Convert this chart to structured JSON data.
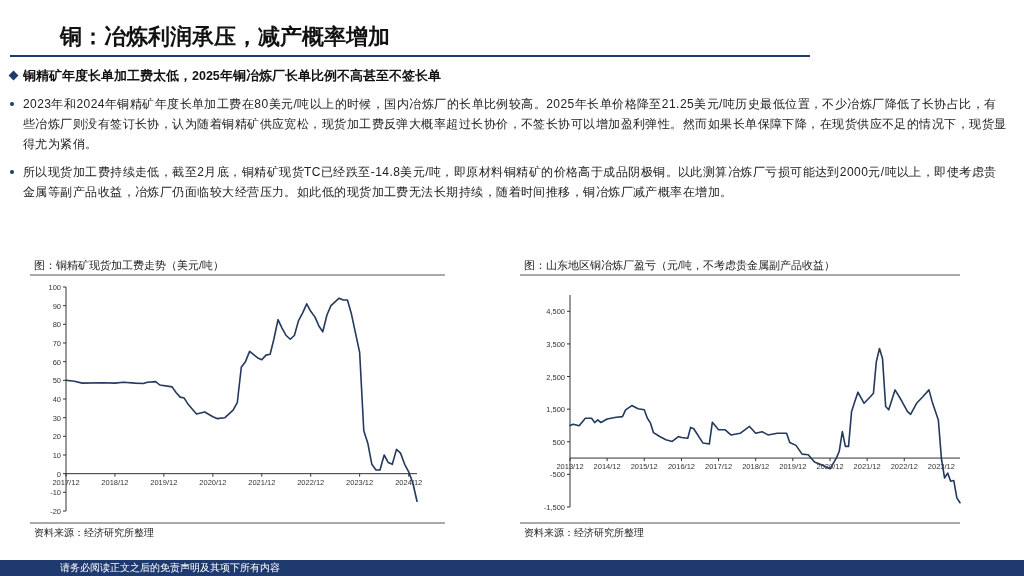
{
  "chart_data": [
    {
      "type": "other",
      "title": "铜：冶炼利润承压，减产概率增加",
      "subtitle": "铜精矿年度长单加工费太低，2025年铜冶炼厂长单比例不高甚至不签长单",
      "annotations": [
        "2023年和2024年铜精矿年度长单加工费在80美元/吨以上的时候，国内冶炼厂的长单比例较高。2025年长单价格降至21.25美元/吨历史最低位置，不少冶炼厂降低了长协占比，有些冶炼厂则没有签订长协，认为随着铜精矿供应宽松，现货加工费反弹大概率超过长协价，不签长协可以增加盈利弹性。然而如果长单保障下降，在现货供应不足的情况下，现货显得尤为紧俏。",
        "所以现货加工费持续走低，截至2月底，铜精矿现货TC已经跌至-14.8美元/吨，即原材料铜精矿的价格高于成品阴极铜。以此测算冶炼厂亏损可能达到2000元/吨以上，即使考虑贵金属等副产品收益，冶炼厂仍面临较大经营压力。如此低的现货加工费无法长期持续，随着时间推移，铜冶炼厂减产概率在增加。",
        "请务必阅读正文之后的免责声明及其项下所有内容"
      ]
    },
    {
      "type": "line",
      "title": "图：铜精矿现货加工费走势（美元/吨）",
      "annotations": [
        "资料来源：经济研究所整理"
      ],
      "x": [
        "2017-12",
        "2018-02",
        "2018-04",
        "2018-09",
        "2018-12",
        "2019-02",
        "2019-05",
        "2019-07",
        "2019-08",
        "2019-10",
        "2019-11",
        "2020-02",
        "2020-03",
        "2020-04",
        "2020-05",
        "2020-06",
        "2020-07",
        "2020-08",
        "2020-10",
        "2020-12",
        "2021-01",
        "2021-03",
        "2021-05",
        "2021-06",
        "2021-07",
        "2021-08",
        "2021-09",
        "2021-11",
        "2021-12",
        "2022-01",
        "2022-02",
        "2022-03",
        "2022-04",
        "2022-05",
        "2022-06",
        "2022-07",
        "2022-08",
        "2022-09",
        "2022-10",
        "2022-11",
        "2022-12",
        "2023-01",
        "2023-02",
        "2023-03",
        "2023-04",
        "2023-05",
        "2023-07",
        "2023-08",
        "2023-09",
        "2023-10",
        "2023-11",
        "2023-12",
        "2024-01",
        "2024-02",
        "2024-03",
        "2024-04",
        "2024-05",
        "2024-06",
        "2024-07",
        "2024-08",
        "2024-09",
        "2024-10",
        "2024-11",
        "2024-12",
        "2025-01",
        "2025-02"
      ],
      "series": [
        {
          "color": "#23395d",
          "values": [
            50,
            49.5,
            48.5,
            48.7,
            48.5,
            49,
            48.5,
            48.3,
            49,
            49.3,
            47.5,
            46.5,
            43.5,
            41,
            40.5,
            37,
            34.5,
            32,
            33,
            30.5,
            29.5,
            30,
            34,
            38,
            57,
            60,
            65.5,
            62,
            61,
            63.5,
            64,
            72,
            82.5,
            78,
            74,
            72,
            74,
            82,
            86,
            91,
            87,
            84,
            79,
            76,
            85,
            90,
            94,
            93,
            93,
            85.5,
            75,
            65,
            23,
            16,
            5,
            2,
            2,
            10,
            6,
            5,
            13,
            11,
            5,
            1,
            -5,
            -14.8
          ]
        }
      ],
      "xlim": [
        "2017-12",
        "2025-02"
      ],
      "xticks": [
        {
          "value": "2017-12",
          "label": "2017/12"
        },
        {
          "value": "2018-12",
          "label": "2018/12"
        },
        {
          "value": "2019-12",
          "label": "2019/12"
        },
        {
          "value": "2020-12",
          "label": "2020/12"
        },
        {
          "value": "2021-12",
          "label": "2021/12"
        },
        {
          "value": "2022-12",
          "label": "2022/12"
        },
        {
          "value": "2023-12",
          "label": "2023/12"
        },
        {
          "value": "2024-12",
          "label": "2024/12"
        }
      ],
      "ylim": [
        -20,
        100
      ],
      "yticks": [
        -20,
        -10,
        0,
        10,
        20,
        30,
        40,
        50,
        60,
        70,
        80,
        90,
        100
      ]
    },
    {
      "type": "line",
      "title": "图：山东地区铜冶炼厂盈亏（元/吨，不考虑贵金属副产品收益）",
      "annotations": [
        "资料来源：经济研究所整理"
      ],
      "x": [
        "2013-12",
        "2014-01",
        "2014-03",
        "2014-05",
        "2014-07",
        "2014-08",
        "2014-09",
        "2014-10",
        "2014-12",
        "2015-03",
        "2015-05",
        "2015-06",
        "2015-08",
        "2015-10",
        "2015-12",
        "2016-01",
        "2016-02",
        "2016-03",
        "2016-05",
        "2016-07",
        "2016-09",
        "2016-11",
        "2016-12",
        "2017-02",
        "2017-03",
        "2017-04",
        "2017-07",
        "2017-09",
        "2017-10",
        "2017-12",
        "2018-02",
        "2018-04",
        "2018-07",
        "2018-10",
        "2018-12",
        "2019-02",
        "2019-04",
        "2019-07",
        "2019-10",
        "2019-11",
        "2020-01",
        "2020-03",
        "2020-05",
        "2020-07",
        "2020-09",
        "2020-12",
        "2021-02",
        "2021-03",
        "2021-04",
        "2021-05",
        "2021-06",
        "2021-07",
        "2021-08",
        "2021-09",
        "2021-11",
        "2022-01",
        "2022-02",
        "2022-03",
        "2022-04",
        "2022-05",
        "2022-06",
        "2022-07",
        "2022-09",
        "2022-11",
        "2023-01",
        "2023-02",
        "2023-04",
        "2023-06",
        "2023-08",
        "2023-09",
        "2023-11",
        "2023-12",
        "2024-01",
        "2024-02",
        "2024-03",
        "2024-04",
        "2024-05",
        "2024-06"
      ],
      "series": [
        {
          "color": "#23395d",
          "values": [
            1000,
            1040,
            990,
            1220,
            1220,
            1090,
            1170,
            1090,
            1200,
            1250,
            1270,
            1480,
            1610,
            1510,
            1480,
            1220,
            1070,
            780,
            660,
            560,
            510,
            660,
            630,
            610,
            940,
            900,
            460,
            430,
            1100,
            870,
            870,
            710,
            760,
            970,
            760,
            810,
            710,
            760,
            760,
            480,
            390,
            120,
            100,
            -120,
            -200,
            -330,
            0,
            200,
            810,
            360,
            360,
            1430,
            1730,
            2020,
            1680,
            1880,
            1990,
            2950,
            3360,
            3050,
            1580,
            1480,
            2090,
            1780,
            1430,
            1340,
            1680,
            1880,
            2090,
            1730,
            1170,
            0,
            -610,
            -460,
            -710,
            -690,
            -1220,
            -1370
          ]
        }
      ],
      "xlim": [
        "2013-12",
        "2024-06"
      ],
      "xticks": [
        {
          "value": "2013-12",
          "label": "2013/12"
        },
        {
          "value": "2014-12",
          "label": "2014/12"
        },
        {
          "value": "2015-12",
          "label": "2015/12"
        },
        {
          "value": "2016-12",
          "label": "2016/12"
        },
        {
          "value": "2017-12",
          "label": "2017/12"
        },
        {
          "value": "2018-12",
          "label": "2018/12"
        },
        {
          "value": "2019-12",
          "label": "2019/12"
        },
        {
          "value": "2020-12",
          "label": "2020/12"
        },
        {
          "value": "2021-12",
          "label": "2021/12"
        },
        {
          "value": "2022-12",
          "label": "2022/12"
        },
        {
          "value": "2023-12",
          "label": "2023/12"
        }
      ],
      "ylim": [
        -1500,
        5000
      ],
      "yticks": [
        {
          "value": -1500,
          "label": "-1,500"
        },
        {
          "value": -500,
          "label": "-500"
        },
        {
          "value": 500,
          "label": "500"
        },
        {
          "value": 1500,
          "label": "1,500"
        },
        {
          "value": 2500,
          "label": "2,500"
        },
        {
          "value": 3500,
          "label": "3,500"
        },
        {
          "value": 4500,
          "label": "4,500"
        }
      ]
    }
  ]
}
